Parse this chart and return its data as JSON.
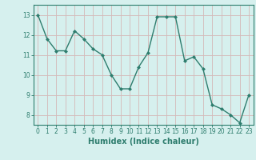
{
  "x": [
    0,
    1,
    2,
    3,
    4,
    5,
    6,
    7,
    8,
    9,
    10,
    11,
    12,
    13,
    14,
    15,
    16,
    17,
    18,
    19,
    20,
    21,
    22,
    23
  ],
  "y": [
    13.0,
    11.8,
    11.2,
    11.2,
    12.2,
    11.8,
    11.3,
    11.0,
    10.0,
    9.3,
    9.3,
    10.4,
    11.1,
    12.9,
    12.9,
    12.9,
    10.7,
    10.9,
    10.3,
    8.5,
    8.3,
    8.0,
    7.6,
    9.0
  ],
  "line_color": "#2e7d6e",
  "marker": "D",
  "marker_size": 2,
  "bg_color": "#d6f0ee",
  "grid_color_major": "#b8d8d4",
  "grid_color_minor": "#cce8e4",
  "xlabel": "Humidex (Indice chaleur)",
  "ylim": [
    7.5,
    13.5
  ],
  "xlim": [
    -0.5,
    23.5
  ],
  "yticks": [
    8,
    9,
    10,
    11,
    12,
    13
  ],
  "xticks": [
    0,
    1,
    2,
    3,
    4,
    5,
    6,
    7,
    8,
    9,
    10,
    11,
    12,
    13,
    14,
    15,
    16,
    17,
    18,
    19,
    20,
    21,
    22,
    23
  ],
  "tick_fontsize": 5.5,
  "xlabel_fontsize": 7,
  "line_width": 1.0,
  "tick_color": "#2e7d6e",
  "spine_color": "#2e7d6e"
}
